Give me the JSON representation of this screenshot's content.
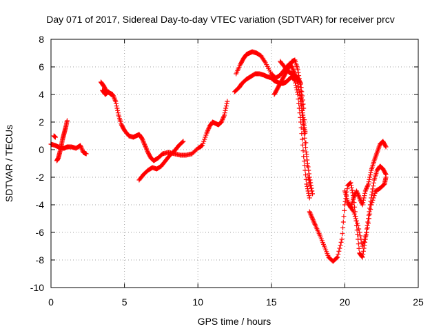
{
  "chart_data": {
    "type": "scatter",
    "title": "Day 071 of 2017, Sidereal Day-to-day VTEC variation (SDTVAR) for receiver prcv",
    "xlabel": "GPS time / hours",
    "ylabel": "SDTVAR / TECUs",
    "xlim": [
      0,
      25
    ],
    "ylim": [
      -10,
      8
    ],
    "xticks": [
      "0",
      "5",
      "10",
      "15",
      "20",
      "25"
    ],
    "yticks": [
      "-10",
      "-8",
      "-6",
      "-4",
      "-2",
      "0",
      "2",
      "4",
      "6",
      "8"
    ],
    "grid": true,
    "marker": "plus",
    "color": "#ff0000",
    "series": [
      {
        "x": [
          0.0,
          0.3,
          0.5,
          0.7,
          0.9,
          1.1,
          1.4,
          1.7,
          2.0,
          2.2,
          2.4
        ],
        "y": [
          0.4,
          0.3,
          0.2,
          0.1,
          0.1,
          0.2,
          0.2,
          0.1,
          0.3,
          -0.2,
          -0.3
        ]
      },
      {
        "x": [
          0.2,
          0.3
        ],
        "y": [
          1.0,
          0.9
        ]
      },
      {
        "x": [
          0.4,
          0.5,
          0.6,
          0.7,
          0.8,
          0.9,
          1.0,
          1.1
        ],
        "y": [
          -0.8,
          -0.6,
          -0.2,
          0.3,
          0.8,
          1.2,
          1.6,
          2.1
        ]
      },
      {
        "x": [
          3.4,
          3.6,
          3.8,
          4.0,
          4.2,
          4.4,
          4.6,
          4.8,
          5.0,
          5.3,
          5.6,
          5.8,
          6.0,
          6.2,
          6.4,
          6.6,
          6.8,
          7.0,
          7.3,
          7.6,
          8.0,
          8.4,
          8.8,
          9.2,
          9.6,
          10.0,
          10.3,
          10.6,
          10.8,
          11.0,
          11.2,
          11.4,
          11.6,
          11.8,
          12.0
        ],
        "y": [
          4.9,
          4.6,
          4.2,
          4.1,
          4.0,
          3.5,
          2.5,
          1.8,
          1.4,
          1.0,
          0.9,
          1.0,
          1.1,
          0.8,
          0.3,
          -0.2,
          -0.6,
          -0.8,
          -0.6,
          -0.3,
          -0.2,
          -0.3,
          -0.4,
          -0.4,
          -0.3,
          0.1,
          0.3,
          1.2,
          1.7,
          2.0,
          1.9,
          1.8,
          2.0,
          2.5,
          3.5
        ]
      },
      {
        "x": [
          3.5,
          3.7,
          3.9,
          4.1
        ],
        "y": [
          4.3,
          4.0,
          4.2,
          4.0
        ]
      },
      {
        "x": [
          6.0,
          6.3,
          6.6,
          6.9,
          7.2,
          7.5,
          7.8,
          8.1,
          8.4,
          8.7,
          9.0
        ],
        "y": [
          -2.2,
          -1.8,
          -1.5,
          -1.3,
          -1.4,
          -1.2,
          -0.8,
          -0.4,
          -0.1,
          0.3,
          0.6
        ]
      },
      {
        "x": [
          12.5,
          12.8,
          13.0,
          13.3,
          13.6,
          13.9,
          14.2,
          14.5,
          14.7,
          15.0,
          15.2,
          15.4,
          15.6,
          15.8,
          16.0,
          16.2,
          16.4,
          16.6,
          16.8,
          17.0,
          17.2,
          17.4,
          17.6
        ],
        "y": [
          4.2,
          4.5,
          4.8,
          5.1,
          5.3,
          5.5,
          5.5,
          5.4,
          5.3,
          5.2,
          5.0,
          4.9,
          4.8,
          4.8,
          4.9,
          5.1,
          5.3,
          5.0,
          4.0,
          2.0,
          -0.5,
          -2.5,
          -3.5
        ]
      },
      {
        "x": [
          12.6,
          12.9,
          13.1,
          13.3,
          13.5,
          13.7,
          14.0,
          14.3,
          14.6,
          15.0,
          15.3,
          15.6,
          15.9,
          16.2,
          16.4,
          16.6,
          16.8,
          17.0,
          17.2,
          17.4,
          17.6,
          17.8
        ],
        "y": [
          5.5,
          6.2,
          6.6,
          6.9,
          7.0,
          7.1,
          7.0,
          6.8,
          6.3,
          5.5,
          5.2,
          5.4,
          5.8,
          6.2,
          6.0,
          5.5,
          4.8,
          3.5,
          1.5,
          -0.5,
          -2.0,
          -3.2
        ]
      },
      {
        "x": [
          15.2,
          15.4,
          15.6,
          15.8,
          16.0,
          16.2,
          16.4,
          16.6,
          16.8,
          17.0,
          17.1,
          17.2,
          17.3
        ],
        "y": [
          4.0,
          4.4,
          4.8,
          5.2,
          5.6,
          6.0,
          6.4,
          6.5,
          5.8,
          4.5,
          3.0,
          2.0,
          1.2
        ]
      },
      {
        "x": [
          15.6,
          15.9,
          16.2,
          16.5,
          16.8,
          17.0,
          17.2,
          17.5,
          17.8
        ],
        "y": [
          6.4,
          6.0,
          5.6,
          5.5,
          5.2,
          4.8,
          3.0,
          -2.0,
          -3.2
        ]
      },
      {
        "x": [
          17.6,
          17.8,
          18.0,
          18.3,
          18.6,
          18.9,
          19.2,
          19.5,
          19.8,
          20.0,
          20.2,
          20.4,
          20.6,
          20.8,
          21.0,
          21.2,
          21.4,
          21.6,
          21.8,
          22.0,
          22.2,
          22.4,
          22.6,
          22.8
        ],
        "y": [
          -4.5,
          -5.0,
          -5.5,
          -6.2,
          -7.0,
          -7.8,
          -8.1,
          -7.8,
          -6.5,
          -4.0,
          -2.6,
          -2.4,
          -3.5,
          -5.5,
          -7.5,
          -7.8,
          -6.5,
          -5.0,
          -3.5,
          -2.2,
          -1.5,
          -1.2,
          -1.4,
          -1.8
        ]
      },
      {
        "x": [
          20.0,
          20.2,
          20.4,
          20.6,
          20.8,
          21.0,
          21.2,
          21.4,
          21.6,
          21.8,
          22.0,
          22.2,
          22.4,
          22.6,
          22.8
        ],
        "y": [
          -3.0,
          -3.8,
          -4.2,
          -3.5,
          -3.0,
          -3.5,
          -4.0,
          -3.0,
          -2.5,
          -1.5,
          -0.8,
          -0.2,
          0.4,
          0.6,
          0.2
        ]
      },
      {
        "x": [
          20.3,
          20.6,
          20.9,
          21.2,
          21.5,
          21.8,
          22.1,
          22.4,
          22.7,
          22.8
        ],
        "y": [
          -4.0,
          -4.5,
          -5.5,
          -7.0,
          -6.0,
          -4.0,
          -3.0,
          -2.8,
          -2.5,
          -2.0
        ]
      }
    ]
  }
}
